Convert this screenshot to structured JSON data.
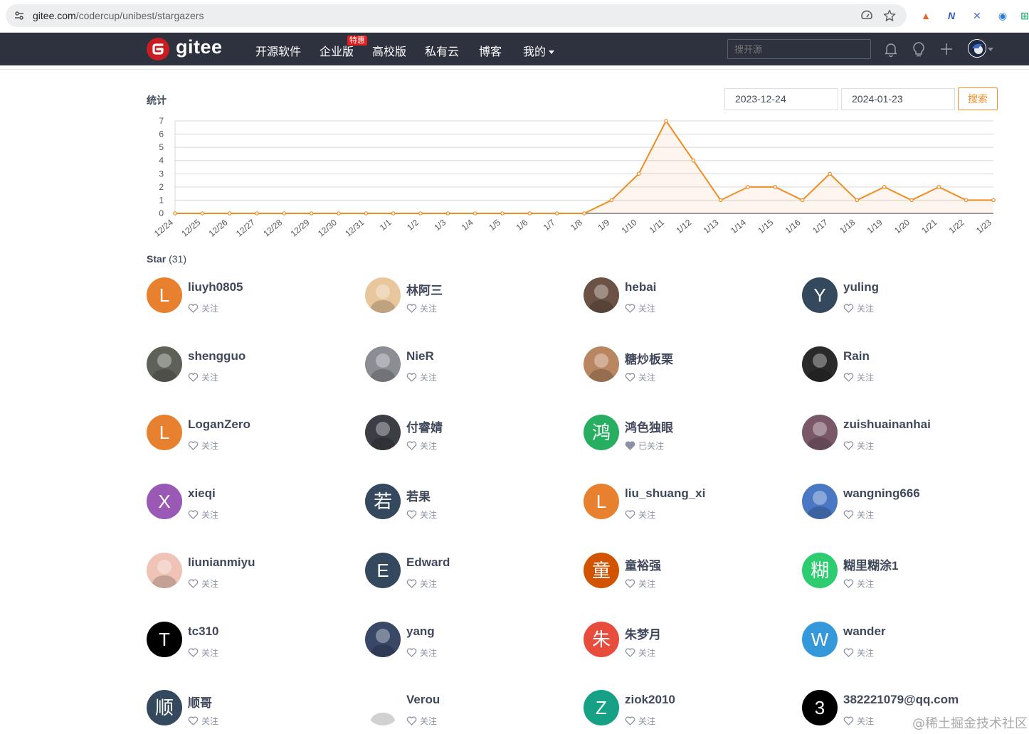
{
  "browser": {
    "url_host": "gitee.com",
    "url_path": "/codercup/unibest/stargazers"
  },
  "header": {
    "logo_text": "gitee",
    "nav": [
      {
        "label": "开源软件"
      },
      {
        "label": "企业版"
      },
      {
        "label": "高校版"
      },
      {
        "label": "私有云"
      },
      {
        "label": "博客"
      },
      {
        "label": "我的"
      }
    ],
    "badge": "特惠",
    "search_placeholder": "搜开源"
  },
  "stats": {
    "title": "统计",
    "start_date": "2023-12-24",
    "end_date": "2024-01-23",
    "search_label": "搜索"
  },
  "chart_data": {
    "type": "area",
    "categories": [
      "12/24",
      "12/25",
      "12/26",
      "12/27",
      "12/28",
      "12/29",
      "12/30",
      "12/31",
      "1/1",
      "1/2",
      "1/3",
      "1/4",
      "1/5",
      "1/6",
      "1/7",
      "1/8",
      "1/9",
      "1/10",
      "1/11",
      "1/12",
      "1/13",
      "1/14",
      "1/15",
      "1/16",
      "1/17",
      "1/18",
      "1/19",
      "1/20",
      "1/21",
      "1/22",
      "1/23"
    ],
    "values": [
      0,
      0,
      0,
      0,
      0,
      0,
      0,
      0,
      0,
      0,
      0,
      0,
      0,
      0,
      0,
      0,
      1,
      3,
      7,
      4,
      1,
      2,
      2,
      1,
      3,
      1,
      2,
      1,
      2,
      1,
      1
    ],
    "ylim": [
      0,
      7
    ],
    "yticks": [
      0,
      1,
      2,
      3,
      4,
      5,
      6,
      7
    ],
    "grid": true,
    "line_color": "#f08c23"
  },
  "stars": {
    "title": "Star",
    "count": "(31)",
    "follow_label": "关注",
    "followed_label": "已关注",
    "users": [
      {
        "name": "liuyh0805",
        "initial": "L",
        "color": "#e8812f",
        "followed": false
      },
      {
        "name": "林阿三",
        "initial": "",
        "color": "#e9c79d",
        "followed": false
      },
      {
        "name": "hebai",
        "initial": "",
        "color": "#6b5245",
        "followed": false
      },
      {
        "name": "yuling",
        "initial": "Y",
        "color": "#34495e",
        "followed": false
      },
      {
        "name": "shengguo",
        "initial": "",
        "color": "#5e6158",
        "followed": false
      },
      {
        "name": "NieR",
        "initial": "",
        "color": "#8b8d94",
        "followed": false
      },
      {
        "name": "糖炒板栗",
        "initial": "",
        "color": "#b88660",
        "followed": false
      },
      {
        "name": "Rain",
        "initial": "",
        "color": "#2a2a2a",
        "followed": false
      },
      {
        "name": "LoganZero",
        "initial": "L",
        "color": "#e8812f",
        "followed": false
      },
      {
        "name": "付睿婧",
        "initial": "",
        "color": "#3b3e45",
        "followed": false
      },
      {
        "name": "鸿色独眼",
        "initial": "鸿",
        "color": "#27ae60",
        "followed": true
      },
      {
        "name": "zuishuainanhai",
        "initial": "",
        "color": "#7a5868",
        "followed": false
      },
      {
        "name": "xieqi",
        "initial": "X",
        "color": "#9b59b6",
        "followed": false
      },
      {
        "name": "若果",
        "initial": "若",
        "color": "#34495e",
        "followed": false
      },
      {
        "name": "liu_shuang_xi",
        "initial": "L",
        "color": "#e8812f",
        "followed": false
      },
      {
        "name": "wangning666",
        "initial": "",
        "color": "#4a78c4",
        "followed": false
      },
      {
        "name": "liunianmiyu",
        "initial": "",
        "color": "#efc4b6",
        "followed": false
      },
      {
        "name": "Edward",
        "initial": "E",
        "color": "#34495e",
        "followed": false
      },
      {
        "name": "童裕强",
        "initial": "童",
        "color": "#d35400",
        "followed": false
      },
      {
        "name": "糊里糊涂1",
        "initial": "糊",
        "color": "#2ecc71",
        "followed": false
      },
      {
        "name": "tc310",
        "initial": "T",
        "color": "#000000",
        "followed": false
      },
      {
        "name": "yang",
        "initial": "",
        "color": "#3a4868",
        "followed": false
      },
      {
        "name": "朱梦月",
        "initial": "朱",
        "color": "#e74c3c",
        "followed": false
      },
      {
        "name": "wander",
        "initial": "W",
        "color": "#3498db",
        "followed": false
      },
      {
        "name": "顺哥",
        "initial": "顺",
        "color": "#34495e",
        "followed": false
      },
      {
        "name": "Verou",
        "initial": "",
        "color": "#ffffff",
        "followed": false
      },
      {
        "name": "ziok2010",
        "initial": "Z",
        "color": "#16a085",
        "followed": false
      },
      {
        "name": "382221079@qq.com",
        "initial": "3",
        "color": "#000000",
        "followed": false
      }
    ]
  },
  "watermark": "@稀土掘金技术社区"
}
